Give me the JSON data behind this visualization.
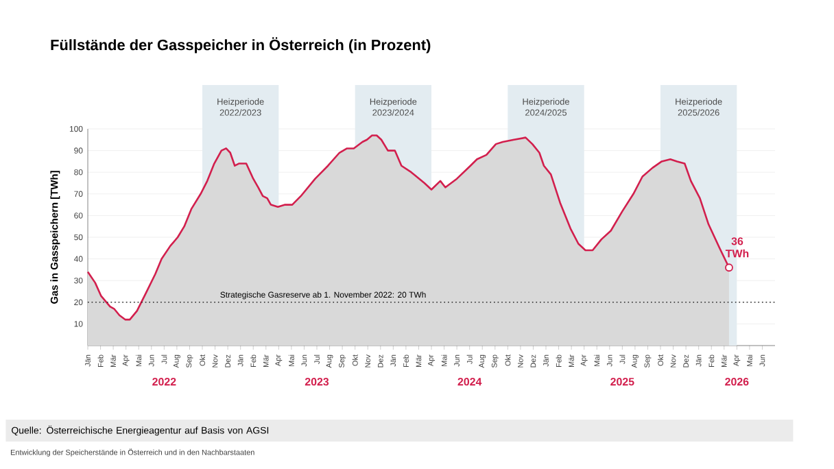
{
  "chart_data": {
    "type": "area",
    "title": "Füllstände der Gasspeicher in Österreich (in Prozent)",
    "ylabel": "Gas in Gasspeichern [TWh]",
    "color": "#d21f4d",
    "x": [
      "2022-01-01",
      "2022-01-19",
      "2022-02-02",
      "2022-02-22",
      "2022-03-03",
      "2022-03-16",
      "2022-03-30",
      "2022-04-10",
      "2022-04-27",
      "2022-05-18",
      "2022-06-10",
      "2022-06-25",
      "2022-07-16",
      "2022-08-03",
      "2022-08-19",
      "2022-09-05",
      "2022-09-27",
      "2022-10-13",
      "2022-10-30",
      "2022-11-16",
      "2022-11-27",
      "2022-12-07",
      "2022-12-18",
      "2022-12-28",
      "2023-01-15",
      "2023-02-01",
      "2023-02-12",
      "2023-02-22",
      "2023-03-04",
      "2023-03-13",
      "2023-03-30",
      "2023-04-16",
      "2023-05-03",
      "2023-05-24",
      "2023-06-27",
      "2023-07-28",
      "2023-08-25",
      "2023-09-12",
      "2023-09-28",
      "2023-10-19",
      "2023-10-30",
      "2023-11-11",
      "2023-11-22",
      "2023-12-03",
      "2023-12-19",
      "2024-01-05",
      "2024-01-21",
      "2024-02-13",
      "2024-03-15",
      "2024-04-01",
      "2024-04-22",
      "2024-05-04",
      "2024-06-01",
      "2024-07-03",
      "2024-07-19",
      "2024-08-11",
      "2024-09-03",
      "2024-09-19",
      "2024-10-16",
      "2024-11-13",
      "2024-11-29",
      "2024-12-16",
      "2024-12-27",
      "2025-01-13",
      "2025-02-04",
      "2025-02-27",
      "2025-03-18",
      "2025-04-04",
      "2025-04-21",
      "2025-05-12",
      "2025-06-04",
      "2025-07-01",
      "2025-07-28",
      "2025-08-19",
      "2025-09-12",
      "2025-10-04",
      "2025-10-25",
      "2025-11-10",
      "2025-11-28",
      "2025-12-13",
      "2026-01-04",
      "2026-01-25",
      "2026-02-19",
      "2026-03-13"
    ],
    "values": [
      34,
      29,
      23,
      18,
      17,
      14,
      12,
      12,
      16,
      24,
      33,
      40,
      46,
      50,
      55,
      63,
      70,
      76,
      84,
      90,
      91,
      89,
      83,
      84,
      84,
      77,
      73,
      69,
      68,
      65,
      64,
      65,
      65,
      69,
      77,
      83,
      89,
      91,
      91,
      94,
      95,
      97,
      97,
      95,
      90,
      90,
      83,
      80,
      75,
      72,
      76,
      73,
      77,
      83,
      86,
      88,
      93,
      94,
      95,
      96,
      93,
      89,
      83,
      79,
      66,
      54,
      47,
      44,
      44,
      49,
      53,
      62,
      70,
      78,
      82,
      85,
      86,
      85,
      84,
      76,
      68,
      56,
      45,
      36
    ],
    "xlim": [
      "2022-01-01",
      "2026-07-01"
    ],
    "xticks": [
      {
        "value": "2022-01-01",
        "label": "Jän"
      },
      {
        "value": "2022-02-01",
        "label": "Feb"
      },
      {
        "value": "2022-03-01",
        "label": "Mär"
      },
      {
        "value": "2022-04-01",
        "label": "Apr"
      },
      {
        "value": "2022-05-01",
        "label": "Mai"
      },
      {
        "value": "2022-06-01",
        "label": "Jun"
      },
      {
        "value": "2022-07-01",
        "label": "Jul"
      },
      {
        "value": "2022-08-01",
        "label": "Aug"
      },
      {
        "value": "2022-09-01",
        "label": "Sep"
      },
      {
        "value": "2022-10-01",
        "label": "Okt"
      },
      {
        "value": "2022-11-01",
        "label": "Nov"
      },
      {
        "value": "2022-12-01",
        "label": "Dez"
      },
      {
        "value": "2023-01-01",
        "label": "Jän"
      },
      {
        "value": "2023-02-01",
        "label": "Feb"
      },
      {
        "value": "2023-03-01",
        "label": "Mär"
      },
      {
        "value": "2023-04-01",
        "label": "Apr"
      },
      {
        "value": "2023-05-01",
        "label": "Mai"
      },
      {
        "value": "2023-06-01",
        "label": "Jun"
      },
      {
        "value": "2023-07-01",
        "label": "Jul"
      },
      {
        "value": "2023-08-01",
        "label": "Aug"
      },
      {
        "value": "2023-09-01",
        "label": "Sep"
      },
      {
        "value": "2023-10-01",
        "label": "Okt"
      },
      {
        "value": "2023-11-01",
        "label": "Nov"
      },
      {
        "value": "2023-12-01",
        "label": "Dez"
      },
      {
        "value": "2024-01-01",
        "label": "Jän"
      },
      {
        "value": "2024-02-01",
        "label": "Feb"
      },
      {
        "value": "2024-03-01",
        "label": "Mär"
      },
      {
        "value": "2024-04-01",
        "label": "Apr"
      },
      {
        "value": "2024-05-01",
        "label": "Mai"
      },
      {
        "value": "2024-06-01",
        "label": "Jun"
      },
      {
        "value": "2024-07-01",
        "label": "Jul"
      },
      {
        "value": "2024-08-01",
        "label": "Aug"
      },
      {
        "value": "2024-09-01",
        "label": "Sep"
      },
      {
        "value": "2024-10-01",
        "label": "Okt"
      },
      {
        "value": "2024-11-01",
        "label": "Nov"
      },
      {
        "value": "2024-12-01",
        "label": "Dez"
      },
      {
        "value": "2025-01-01",
        "label": "Jän"
      },
      {
        "value": "2025-02-01",
        "label": "Feb"
      },
      {
        "value": "2025-03-01",
        "label": "Mär"
      },
      {
        "value": "2025-04-01",
        "label": "Apr"
      },
      {
        "value": "2025-05-01",
        "label": "Mai"
      },
      {
        "value": "2025-06-01",
        "label": "Jun"
      },
      {
        "value": "2025-07-01",
        "label": "Jul"
      },
      {
        "value": "2025-08-01",
        "label": "Aug"
      },
      {
        "value": "2025-09-01",
        "label": "Sep"
      },
      {
        "value": "2025-10-01",
        "label": "Okt"
      },
      {
        "value": "2025-11-01",
        "label": "Nov"
      },
      {
        "value": "2025-12-01",
        "label": "Dez"
      },
      {
        "value": "2026-01-01",
        "label": "Jän"
      },
      {
        "value": "2026-02-01",
        "label": "Feb"
      },
      {
        "value": "2026-03-01",
        "label": "Mär"
      },
      {
        "value": "2026-04-01",
        "label": "Apr"
      },
      {
        "value": "2026-05-01",
        "label": "Mai"
      },
      {
        "value": "2026-06-01",
        "label": "Jun"
      }
    ],
    "x2lim": [
      "2022-01-01",
      "2026-07-01"
    ],
    "x2ticks": [
      {
        "value": "2022-07-01",
        "label": "2022"
      },
      {
        "value": "2023-07-01",
        "label": "2023"
      },
      {
        "value": "2024-07-01",
        "label": "2024"
      },
      {
        "value": "2025-07-01",
        "label": "2025"
      },
      {
        "value": "2026-04-01",
        "label": "2026"
      }
    ],
    "ylim": [
      0,
      100
    ],
    "yticks": [
      10,
      20,
      30,
      40,
      50,
      60,
      70,
      80,
      90,
      100
    ],
    "grid": "y",
    "bands": [
      {
        "axis": "x",
        "from": "2022-10-01",
        "to": "2023-04-01",
        "label": "Heizperiode 2022/2023",
        "color": "#e3ecf1"
      },
      {
        "axis": "x",
        "from": "2023-10-01",
        "to": "2024-04-01",
        "label": "Heizperiode 2023/2024",
        "color": "#e3ecf1"
      },
      {
        "axis": "x",
        "from": "2024-10-01",
        "to": "2025-04-01",
        "label": "Heizperiode 2024/2025",
        "color": "#e3ecf1"
      },
      {
        "axis": "x",
        "from": "2025-10-01",
        "to": "2026-04-01",
        "label": "Heizperiode 2025/2026",
        "color": "#e3ecf1"
      }
    ],
    "ref_lines": [
      {
        "axis": "y",
        "value": 20,
        "label": "Strategische Gasreserve ab 1. November 2022: 20 TWh",
        "line_style": "dotted",
        "color": "#222222"
      }
    ],
    "annotations": [
      {
        "text": "36 TWh",
        "x": "2026-03-13",
        "y": 36
      },
      "Quelle: Österreichische Energieagentur auf Basis von AGSI",
      "Entwicklung der Speicherstände in Österreich und in den Nachbarstaaten"
    ]
  }
}
